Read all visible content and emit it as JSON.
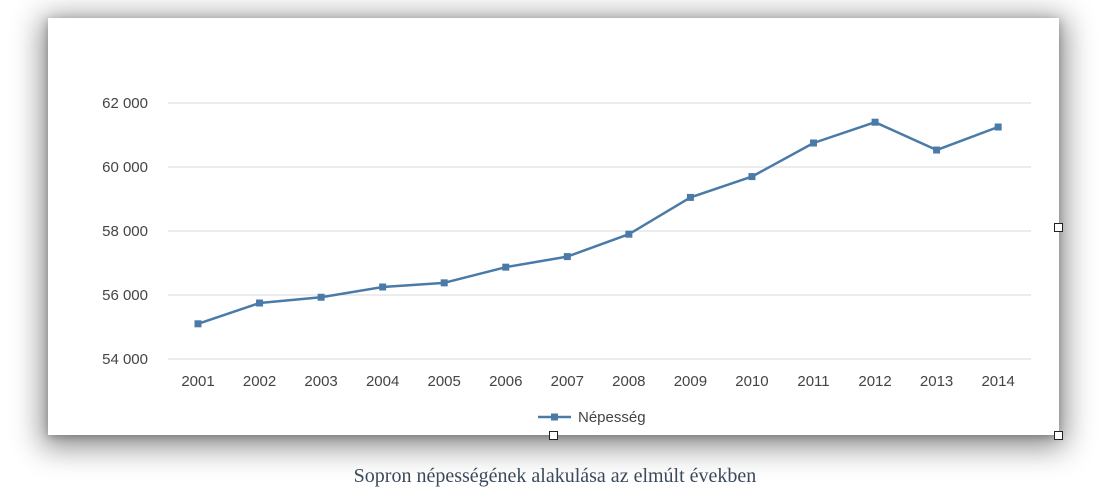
{
  "caption": "Sopron népességének alakulása az elmúlt években",
  "colors": {
    "series": "#4a7aa8",
    "grid": "#d9d9d9",
    "text": "#444444",
    "caption": "#3a4a5c"
  },
  "chart_data": {
    "type": "line",
    "title": "",
    "xlabel": "",
    "ylabel": "",
    "categories": [
      "2001",
      "2002",
      "2003",
      "2004",
      "2005",
      "2006",
      "2007",
      "2008",
      "2009",
      "2010",
      "2011",
      "2012",
      "2013",
      "2014"
    ],
    "series": [
      {
        "name": "Népesség",
        "values": [
          55100,
          55750,
          55930,
          56250,
          56380,
          56870,
          57200,
          57900,
          59050,
          59700,
          60750,
          61400,
          60530,
          61250
        ]
      }
    ],
    "ylim": [
      54000,
      62000
    ],
    "yticks": [
      54000,
      56000,
      58000,
      60000,
      62000
    ],
    "ytick_labels": [
      "54 000",
      "56 000",
      "58 000",
      "60 000",
      "62 000"
    ],
    "grid": true,
    "legend_position": "bottom"
  }
}
